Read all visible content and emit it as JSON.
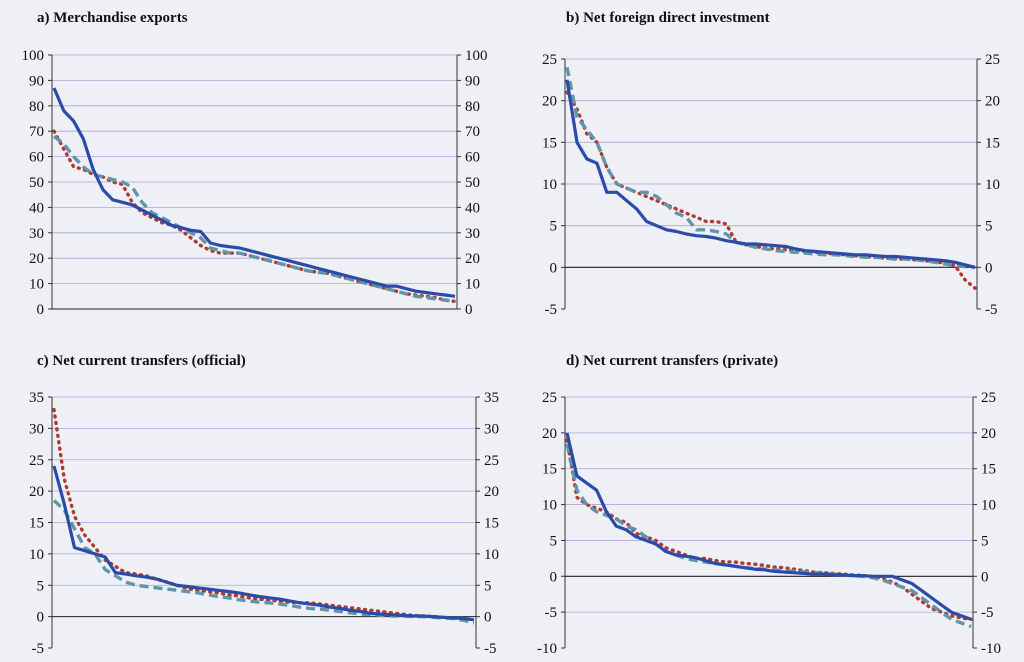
{
  "chart_data": [
    {
      "type": "line",
      "title": "a) Merchandise exports",
      "ylim": [
        0,
        100
      ],
      "yticks": [
        0,
        10,
        20,
        30,
        40,
        50,
        60,
        70,
        80,
        90,
        100
      ],
      "ytick_labels": [
        "0",
        "10",
        "20",
        "30",
        "40",
        "50",
        "60",
        "70",
        "80",
        "90",
        "100"
      ],
      "zero_line": false,
      "grid": true,
      "series": [
        {
          "color": "#2b4ba8",
          "dash": "solid",
          "values": [
            87,
            78,
            74,
            67,
            55,
            47,
            43,
            42,
            41,
            39,
            37,
            35,
            33,
            32,
            31,
            30.5,
            26,
            25,
            24.5,
            24,
            23,
            22,
            21,
            20,
            19,
            18,
            17,
            16,
            15,
            14,
            13,
            12,
            11,
            10,
            9,
            9,
            8,
            7,
            6.5,
            6,
            5.5,
            5
          ]
        },
        {
          "color": "#b03a2e",
          "dash": "dot",
          "values": [
            70,
            63,
            56,
            55,
            53,
            52,
            50,
            49,
            42,
            38,
            36,
            34,
            33,
            31,
            28,
            25,
            23,
            22,
            22,
            22,
            21,
            20,
            19,
            18,
            17,
            16,
            15,
            14.5,
            14,
            13,
            12,
            11,
            10,
            9,
            8,
            7,
            6,
            5.5,
            5,
            4.5,
            3.5,
            3
          ]
        },
        {
          "color": "#5f96aa",
          "dash": "dash",
          "values": [
            68,
            65,
            60,
            56,
            53,
            52,
            51,
            50,
            48,
            42,
            38,
            36,
            34,
            32,
            30,
            28,
            24,
            23,
            22,
            22,
            21,
            20,
            19,
            18,
            17,
            16,
            15,
            14.5,
            14,
            13,
            12,
            11,
            10,
            9,
            8,
            7,
            6,
            5,
            4.5,
            4,
            3.5,
            3
          ]
        }
      ]
    },
    {
      "type": "line",
      "title": "b) Net foreign direct investment",
      "ylim": [
        -5,
        25
      ],
      "yticks": [
        -5,
        0,
        5,
        10,
        15,
        20,
        25
      ],
      "ytick_labels": [
        "-5",
        "0",
        "5",
        "10",
        "15",
        "20",
        "25"
      ],
      "zero_line": true,
      "grid": true,
      "series": [
        {
          "color": "#2b4ba8",
          "dash": "solid",
          "values": [
            22.5,
            15,
            13,
            12.5,
            9,
            9,
            8,
            7,
            5.5,
            5,
            4.5,
            4.3,
            4,
            3.8,
            3.7,
            3.5,
            3.2,
            3,
            2.8,
            2.8,
            2.7,
            2.6,
            2.5,
            2.2,
            2,
            1.9,
            1.8,
            1.7,
            1.6,
            1.5,
            1.5,
            1.4,
            1.3,
            1.3,
            1.2,
            1.1,
            1,
            0.9,
            0.8,
            0.6,
            0.3,
            0
          ]
        },
        {
          "color": "#b03a2e",
          "dash": "dot",
          "values": [
            21,
            19,
            16,
            15,
            12,
            10,
            9.5,
            9,
            8.5,
            8,
            7.5,
            7,
            6.5,
            6,
            5.5,
            5.5,
            5.2,
            3,
            2.7,
            2.5,
            2.3,
            2.2,
            2.1,
            2,
            1.9,
            1.8,
            1.7,
            1.6,
            1.5,
            1.4,
            1.3,
            1.2,
            1.1,
            1,
            1,
            0.9,
            0.8,
            0.7,
            0.5,
            0.2,
            -1.5,
            -2.5
          ]
        },
        {
          "color": "#5f96aa",
          "dash": "dash",
          "values": [
            24,
            18,
            16.5,
            15,
            12,
            10,
            9.5,
            9,
            9,
            8.5,
            7.5,
            6.5,
            6,
            4.5,
            4.5,
            4.3,
            4,
            3,
            2.7,
            2.4,
            2.2,
            2,
            1.9,
            1.8,
            1.7,
            1.6,
            1.5,
            1.5,
            1.4,
            1.3,
            1.2,
            1.2,
            1.1,
            1,
            1,
            0.9,
            0.8,
            0.6,
            0.4,
            0.2,
            0.1,
            0
          ]
        }
      ]
    },
    {
      "type": "line",
      "title": "c) Net current transfers (official)",
      "ylim": [
        -5,
        35
      ],
      "yticks": [
        -5,
        0,
        5,
        10,
        15,
        20,
        25,
        30,
        35
      ],
      "ytick_labels": [
        "-5",
        "0",
        "5",
        "10",
        "15",
        "20",
        "25",
        "30",
        "35"
      ],
      "zero_line": true,
      "grid": true,
      "series": [
        {
          "color": "#2b4ba8",
          "dash": "solid",
          "values": [
            24,
            18,
            11,
            10.5,
            10,
            9.5,
            7,
            6.8,
            6.5,
            6.3,
            6,
            5.5,
            5,
            4.8,
            4.6,
            4.4,
            4.2,
            4,
            3.8,
            3.5,
            3.2,
            3,
            2.8,
            2.5,
            2.2,
            2,
            1.8,
            1.5,
            1.3,
            1,
            0.8,
            0.5,
            0.4,
            0.3,
            0.2,
            0.1,
            0.1,
            0,
            -0.1,
            -0.2,
            -0.3,
            -0.5
          ]
        },
        {
          "color": "#b03a2e",
          "dash": "dot",
          "values": [
            33,
            22,
            16,
            13,
            11,
            9,
            8,
            7,
            6.8,
            6.5,
            6,
            5.5,
            5,
            4.5,
            4.2,
            4,
            3.8,
            3.5,
            3.3,
            3,
            2.8,
            2.6,
            2.5,
            2.3,
            2.2,
            2.2,
            2,
            1.8,
            1.6,
            1.4,
            1.2,
            1,
            0.8,
            0.6,
            0.4,
            0.2,
            0.1,
            0,
            -0.1,
            -0.2,
            -0.3,
            -0.5
          ]
        },
        {
          "color": "#5f96aa",
          "dash": "dash",
          "values": [
            18.5,
            17,
            14,
            11,
            10,
            7.5,
            6.5,
            5.5,
            5,
            4.8,
            4.6,
            4.4,
            4.2,
            4,
            3.8,
            3.5,
            3.2,
            3,
            2.7,
            2.5,
            2.3,
            2.2,
            2,
            1.8,
            1.5,
            1.3,
            1.2,
            1,
            0.8,
            0.6,
            0.4,
            0.3,
            0.2,
            0.1,
            0.1,
            0,
            0,
            -0.1,
            -0.2,
            -0.3,
            -0.6,
            -1
          ]
        }
      ]
    },
    {
      "type": "line",
      "title": "d) Net current transfers (private)",
      "ylim": [
        -10,
        25
      ],
      "yticks": [
        -10,
        -5,
        0,
        5,
        10,
        15,
        20,
        25
      ],
      "ytick_labels": [
        "-10",
        "-5",
        "0",
        "5",
        "10",
        "15",
        "20",
        "25"
      ],
      "zero_line": true,
      "grid": true,
      "series": [
        {
          "color": "#2b4ba8",
          "dash": "solid",
          "values": [
            20,
            14,
            13,
            12,
            9,
            7,
            6.5,
            5.5,
            5,
            4.5,
            3.5,
            3,
            2.8,
            2.6,
            2.2,
            1.8,
            1.6,
            1.4,
            1.2,
            1,
            0.9,
            0.7,
            0.6,
            0.5,
            0.4,
            0.3,
            0.3,
            0.2,
            0.2,
            0.1,
            0.1,
            0,
            0,
            0,
            -0.5,
            -1,
            -2,
            -3,
            -4,
            -5,
            -5.5,
            -6
          ]
        },
        {
          "color": "#b03a2e",
          "dash": "dot",
          "values": [
            19,
            11,
            10,
            9.5,
            9,
            8,
            7.5,
            6,
            5.5,
            5,
            4,
            3.5,
            3,
            2.5,
            2.5,
            2.2,
            2,
            2,
            1.8,
            1.7,
            1.5,
            1.3,
            1.2,
            1,
            0.8,
            0.6,
            0.5,
            0.4,
            0.3,
            0.2,
            0.1,
            0,
            -0.3,
            -0.8,
            -1.5,
            -2.5,
            -3.5,
            -4.5,
            -5,
            -5.5,
            -5.8,
            -6
          ]
        },
        {
          "color": "#5f96aa",
          "dash": "dash",
          "values": [
            18.5,
            12,
            10,
            9,
            8.5,
            8,
            7,
            6.5,
            5.5,
            4.5,
            3.5,
            3,
            2.5,
            2.2,
            2,
            1.8,
            1.6,
            1.4,
            1.2,
            1.1,
            1,
            0.9,
            0.8,
            0.7,
            0.6,
            0.5,
            0.4,
            0.3,
            0.2,
            0.1,
            0,
            -0.2,
            -0.5,
            -1,
            -1.5,
            -2,
            -3,
            -4,
            -5,
            -6,
            -6.5,
            -7
          ]
        }
      ]
    }
  ]
}
